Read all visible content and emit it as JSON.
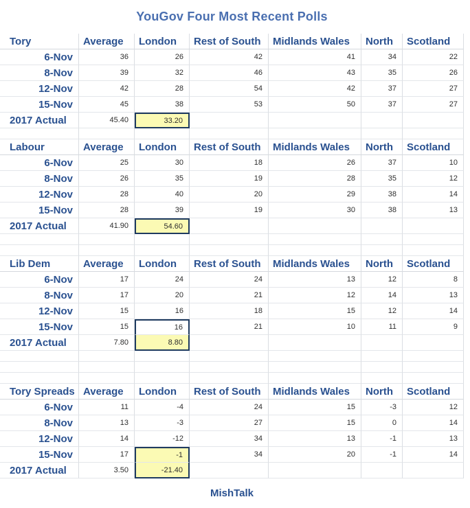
{
  "title": "YouGov Four Most Recent Polls",
  "footer": "MishTalk",
  "columns": [
    "Average",
    "London",
    "Rest of South",
    "Midlands Wales",
    "North",
    "Scotland"
  ],
  "sections": [
    {
      "name": "Tory",
      "rows": [
        {
          "label": "6-Nov",
          "values": [
            "36",
            "26",
            "42",
            "41",
            "34",
            "22"
          ]
        },
        {
          "label": "8-Nov",
          "values": [
            "39",
            "32",
            "46",
            "43",
            "35",
            "26"
          ]
        },
        {
          "label": "12-Nov",
          "values": [
            "42",
            "28",
            "54",
            "42",
            "37",
            "27"
          ]
        },
        {
          "label": "15-Nov",
          "values": [
            "45",
            "38",
            "53",
            "50",
            "37",
            "27"
          ]
        }
      ],
      "actual": {
        "label": "2017 Actual",
        "average": "45.40",
        "london": "33.20"
      },
      "highlight": {
        "column": "London",
        "selected_rows": [
          "2017 Actual"
        ],
        "yellow_rows": [
          "2017 Actual"
        ]
      }
    },
    {
      "name": "Labour",
      "rows": [
        {
          "label": "6-Nov",
          "values": [
            "25",
            "30",
            "18",
            "26",
            "37",
            "10"
          ]
        },
        {
          "label": "8-Nov",
          "values": [
            "26",
            "35",
            "19",
            "28",
            "35",
            "12"
          ]
        },
        {
          "label": "12-Nov",
          "values": [
            "28",
            "40",
            "20",
            "29",
            "38",
            "14"
          ]
        },
        {
          "label": "15-Nov",
          "values": [
            "28",
            "39",
            "19",
            "30",
            "38",
            "13"
          ]
        }
      ],
      "actual": {
        "label": "2017 Actual",
        "average": "41.90",
        "london": "54.60"
      },
      "highlight": {
        "column": "London",
        "selected_rows": [
          "2017 Actual"
        ],
        "yellow_rows": [
          "2017 Actual"
        ]
      }
    },
    {
      "name": "Lib Dem",
      "rows": [
        {
          "label": "6-Nov",
          "values": [
            "17",
            "24",
            "24",
            "13",
            "12",
            "8"
          ]
        },
        {
          "label": "8-Nov",
          "values": [
            "17",
            "20",
            "21",
            "12",
            "14",
            "13"
          ]
        },
        {
          "label": "12-Nov",
          "values": [
            "15",
            "16",
            "18",
            "15",
            "12",
            "14"
          ]
        },
        {
          "label": "15-Nov",
          "values": [
            "15",
            "16",
            "21",
            "10",
            "11",
            "9"
          ]
        }
      ],
      "actual": {
        "label": "2017 Actual",
        "average": "7.80",
        "london": "8.80"
      },
      "highlight": {
        "column": "London",
        "selected_rows": [
          "15-Nov",
          "2017 Actual"
        ],
        "yellow_rows": [
          "2017 Actual"
        ]
      }
    },
    {
      "name": "Tory Spreads",
      "rows": [
        {
          "label": "6-Nov",
          "values": [
            "11",
            "-4",
            "24",
            "15",
            "-3",
            "12"
          ]
        },
        {
          "label": "8-Nov",
          "values": [
            "13",
            "-3",
            "27",
            "15",
            "0",
            "14"
          ]
        },
        {
          "label": "12-Nov",
          "values": [
            "14",
            "-12",
            "34",
            "13",
            "-1",
            "13"
          ]
        },
        {
          "label": "15-Nov",
          "values": [
            "17",
            "-1",
            "34",
            "20",
            "-1",
            "14"
          ]
        }
      ],
      "actual": {
        "label": "2017 Actual",
        "average": "3.50",
        "london": "-21.40"
      },
      "highlight": {
        "column": "London",
        "selected_rows": [
          "15-Nov",
          "2017 Actual"
        ],
        "yellow_rows": [
          "15-Nov",
          "2017 Actual"
        ]
      }
    }
  ],
  "colors": {
    "heading_navy": "#2a5190",
    "title_blue": "#4a6fb0",
    "highlight_yellow": "#fbfab4",
    "selection_border": "#1e3a5f",
    "gridline": "#dadde2"
  },
  "chart_data": [
    {
      "type": "table",
      "title": "Tory",
      "columns": [
        "",
        "Average",
        "London",
        "Rest of South",
        "Midlands Wales",
        "North",
        "Scotland"
      ],
      "rows": [
        [
          "6-Nov",
          36,
          26,
          42,
          41,
          34,
          22
        ],
        [
          "8-Nov",
          39,
          32,
          46,
          43,
          35,
          26
        ],
        [
          "12-Nov",
          42,
          28,
          54,
          42,
          37,
          27
        ],
        [
          "15-Nov",
          45,
          38,
          53,
          50,
          37,
          27
        ],
        [
          "2017 Actual",
          45.4,
          33.2,
          null,
          null,
          null,
          null
        ]
      ]
    },
    {
      "type": "table",
      "title": "Labour",
      "columns": [
        "",
        "Average",
        "London",
        "Rest of South",
        "Midlands Wales",
        "North",
        "Scotland"
      ],
      "rows": [
        [
          "6-Nov",
          25,
          30,
          18,
          26,
          37,
          10
        ],
        [
          "8-Nov",
          26,
          35,
          19,
          28,
          35,
          12
        ],
        [
          "12-Nov",
          28,
          40,
          20,
          29,
          38,
          14
        ],
        [
          "15-Nov",
          28,
          39,
          19,
          30,
          38,
          13
        ],
        [
          "2017 Actual",
          41.9,
          54.6,
          null,
          null,
          null,
          null
        ]
      ]
    },
    {
      "type": "table",
      "title": "Lib Dem",
      "columns": [
        "",
        "Average",
        "London",
        "Rest of South",
        "Midlands Wales",
        "North",
        "Scotland"
      ],
      "rows": [
        [
          "6-Nov",
          17,
          24,
          24,
          13,
          12,
          8
        ],
        [
          "8-Nov",
          17,
          20,
          21,
          12,
          14,
          13
        ],
        [
          "12-Nov",
          15,
          16,
          18,
          15,
          12,
          14
        ],
        [
          "15-Nov",
          15,
          16,
          21,
          10,
          11,
          9
        ],
        [
          "2017 Actual",
          7.8,
          8.8,
          null,
          null,
          null,
          null
        ]
      ]
    },
    {
      "type": "table",
      "title": "Tory Spreads",
      "columns": [
        "",
        "Average",
        "London",
        "Rest of South",
        "Midlands Wales",
        "North",
        "Scotland"
      ],
      "rows": [
        [
          "6-Nov",
          11,
          -4,
          24,
          15,
          -3,
          12
        ],
        [
          "8-Nov",
          13,
          -3,
          27,
          15,
          0,
          14
        ],
        [
          "12-Nov",
          14,
          -12,
          34,
          13,
          -1,
          13
        ],
        [
          "15-Nov",
          17,
          -1,
          34,
          20,
          -1,
          14
        ],
        [
          "2017 Actual",
          3.5,
          -21.4,
          null,
          null,
          null,
          null
        ]
      ]
    }
  ]
}
